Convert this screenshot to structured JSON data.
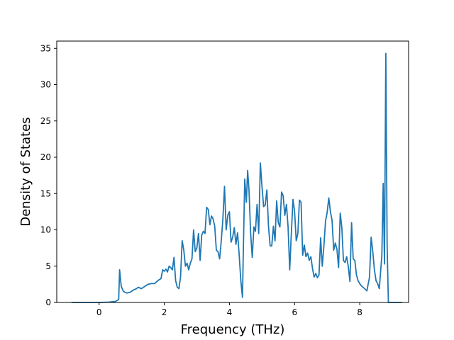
{
  "chart_data": {
    "type": "line",
    "title": "",
    "xlabel": "Frequency (THz)",
    "ylabel": "Density of States",
    "xlim": [
      -1.3,
      9.5
    ],
    "ylim": [
      0,
      36
    ],
    "xticks": [
      0,
      2,
      4,
      6,
      8
    ],
    "yticks": [
      0,
      5,
      10,
      15,
      20,
      25,
      30,
      35
    ],
    "grid": false,
    "legend": "none",
    "series": [
      {
        "color": "#1f77b4",
        "points": [
          [
            -0.85,
            0
          ],
          [
            0.0,
            0
          ],
          [
            0.3,
            0.05
          ],
          [
            0.5,
            0.15
          ],
          [
            0.6,
            0.4
          ],
          [
            0.63,
            4.5
          ],
          [
            0.68,
            2.2
          ],
          [
            0.75,
            1.5
          ],
          [
            0.85,
            1.3
          ],
          [
            0.95,
            1.4
          ],
          [
            1.05,
            1.7
          ],
          [
            1.15,
            1.9
          ],
          [
            1.2,
            2.1
          ],
          [
            1.25,
            2.0
          ],
          [
            1.3,
            1.9
          ],
          [
            1.4,
            2.2
          ],
          [
            1.5,
            2.5
          ],
          [
            1.6,
            2.6
          ],
          [
            1.7,
            2.6
          ],
          [
            1.8,
            3.0
          ],
          [
            1.9,
            3.3
          ],
          [
            1.95,
            4.5
          ],
          [
            2.0,
            4.3
          ],
          [
            2.05,
            4.6
          ],
          [
            2.1,
            4.2
          ],
          [
            2.15,
            5.0
          ],
          [
            2.2,
            4.8
          ],
          [
            2.25,
            4.5
          ],
          [
            2.3,
            6.2
          ],
          [
            2.35,
            3.0
          ],
          [
            2.4,
            2.1
          ],
          [
            2.45,
            1.9
          ],
          [
            2.5,
            3.5
          ],
          [
            2.55,
            8.5
          ],
          [
            2.6,
            7.2
          ],
          [
            2.65,
            5.0
          ],
          [
            2.7,
            5.4
          ],
          [
            2.75,
            4.5
          ],
          [
            2.8,
            5.4
          ],
          [
            2.85,
            6.0
          ],
          [
            2.9,
            10.0
          ],
          [
            2.95,
            7.0
          ],
          [
            3.0,
            7.5
          ],
          [
            3.05,
            9.5
          ],
          [
            3.1,
            5.8
          ],
          [
            3.15,
            9.3
          ],
          [
            3.2,
            9.8
          ],
          [
            3.25,
            9.5
          ],
          [
            3.3,
            13.1
          ],
          [
            3.35,
            12.8
          ],
          [
            3.4,
            10.7
          ],
          [
            3.45,
            11.9
          ],
          [
            3.5,
            11.5
          ],
          [
            3.55,
            10.5
          ],
          [
            3.6,
            7.2
          ],
          [
            3.65,
            7.0
          ],
          [
            3.7,
            6.0
          ],
          [
            3.75,
            8.5
          ],
          [
            3.8,
            11.5
          ],
          [
            3.85,
            16.0
          ],
          [
            3.9,
            10.0
          ],
          [
            3.95,
            12.0
          ],
          [
            4.0,
            12.5
          ],
          [
            4.05,
            8.3
          ],
          [
            4.1,
            9.0
          ],
          [
            4.15,
            10.3
          ],
          [
            4.2,
            8.0
          ],
          [
            4.25,
            9.6
          ],
          [
            4.3,
            6.5
          ],
          [
            4.35,
            3.0
          ],
          [
            4.4,
            0.7
          ],
          [
            4.43,
            8.0
          ],
          [
            4.47,
            17.0
          ],
          [
            4.52,
            13.8
          ],
          [
            4.56,
            18.2
          ],
          [
            4.6,
            15.5
          ],
          [
            4.65,
            9.5
          ],
          [
            4.7,
            6.2
          ],
          [
            4.75,
            10.4
          ],
          [
            4.8,
            9.8
          ],
          [
            4.85,
            13.5
          ],
          [
            4.9,
            9.5
          ],
          [
            4.95,
            19.2
          ],
          [
            5.0,
            16.0
          ],
          [
            5.05,
            13.2
          ],
          [
            5.1,
            13.4
          ],
          [
            5.15,
            15.5
          ],
          [
            5.2,
            10.5
          ],
          [
            5.25,
            7.8
          ],
          [
            5.3,
            7.8
          ],
          [
            5.35,
            10.5
          ],
          [
            5.4,
            8.5
          ],
          [
            5.45,
            14.0
          ],
          [
            5.5,
            11.0
          ],
          [
            5.55,
            10.4
          ],
          [
            5.6,
            15.2
          ],
          [
            5.65,
            14.7
          ],
          [
            5.7,
            12.0
          ],
          [
            5.75,
            13.5
          ],
          [
            5.8,
            10.4
          ],
          [
            5.85,
            4.5
          ],
          [
            5.9,
            9.5
          ],
          [
            5.95,
            14.2
          ],
          [
            6.0,
            12.5
          ],
          [
            6.05,
            8.5
          ],
          [
            6.1,
            9.5
          ],
          [
            6.15,
            14.1
          ],
          [
            6.2,
            13.8
          ],
          [
            6.25,
            6.5
          ],
          [
            6.3,
            7.9
          ],
          [
            6.35,
            6.3
          ],
          [
            6.4,
            6.8
          ],
          [
            6.45,
            5.8
          ],
          [
            6.5,
            6.3
          ],
          [
            6.55,
            4.7
          ],
          [
            6.6,
            3.5
          ],
          [
            6.65,
            4.0
          ],
          [
            6.7,
            3.4
          ],
          [
            6.75,
            3.8
          ],
          [
            6.8,
            8.9
          ],
          [
            6.85,
            5.0
          ],
          [
            6.9,
            7.8
          ],
          [
            6.95,
            11.2
          ],
          [
            7.0,
            12.4
          ],
          [
            7.05,
            14.4
          ],
          [
            7.1,
            12.5
          ],
          [
            7.15,
            11.3
          ],
          [
            7.2,
            7.2
          ],
          [
            7.25,
            8.2
          ],
          [
            7.3,
            7.3
          ],
          [
            7.35,
            4.8
          ],
          [
            7.4,
            12.3
          ],
          [
            7.45,
            10.3
          ],
          [
            7.5,
            5.8
          ],
          [
            7.55,
            5.5
          ],
          [
            7.6,
            6.3
          ],
          [
            7.65,
            4.9
          ],
          [
            7.7,
            2.9
          ],
          [
            7.75,
            11.0
          ],
          [
            7.8,
            6.0
          ],
          [
            7.85,
            5.8
          ],
          [
            7.9,
            3.8
          ],
          [
            7.95,
            3.0
          ],
          [
            8.0,
            2.6
          ],
          [
            8.05,
            2.3
          ],
          [
            8.15,
            1.9
          ],
          [
            8.22,
            1.6
          ],
          [
            8.3,
            3.5
          ],
          [
            8.35,
            9.0
          ],
          [
            8.4,
            7.0
          ],
          [
            8.45,
            4.5
          ],
          [
            8.5,
            3.0
          ],
          [
            8.55,
            2.6
          ],
          [
            8.6,
            1.9
          ],
          [
            8.68,
            6.5
          ],
          [
            8.72,
            16.4
          ],
          [
            8.76,
            5.3
          ],
          [
            8.8,
            34.3
          ],
          [
            8.84,
            8.0
          ],
          [
            8.88,
            0
          ],
          [
            9.0,
            0
          ],
          [
            9.3,
            0
          ]
        ]
      }
    ]
  }
}
